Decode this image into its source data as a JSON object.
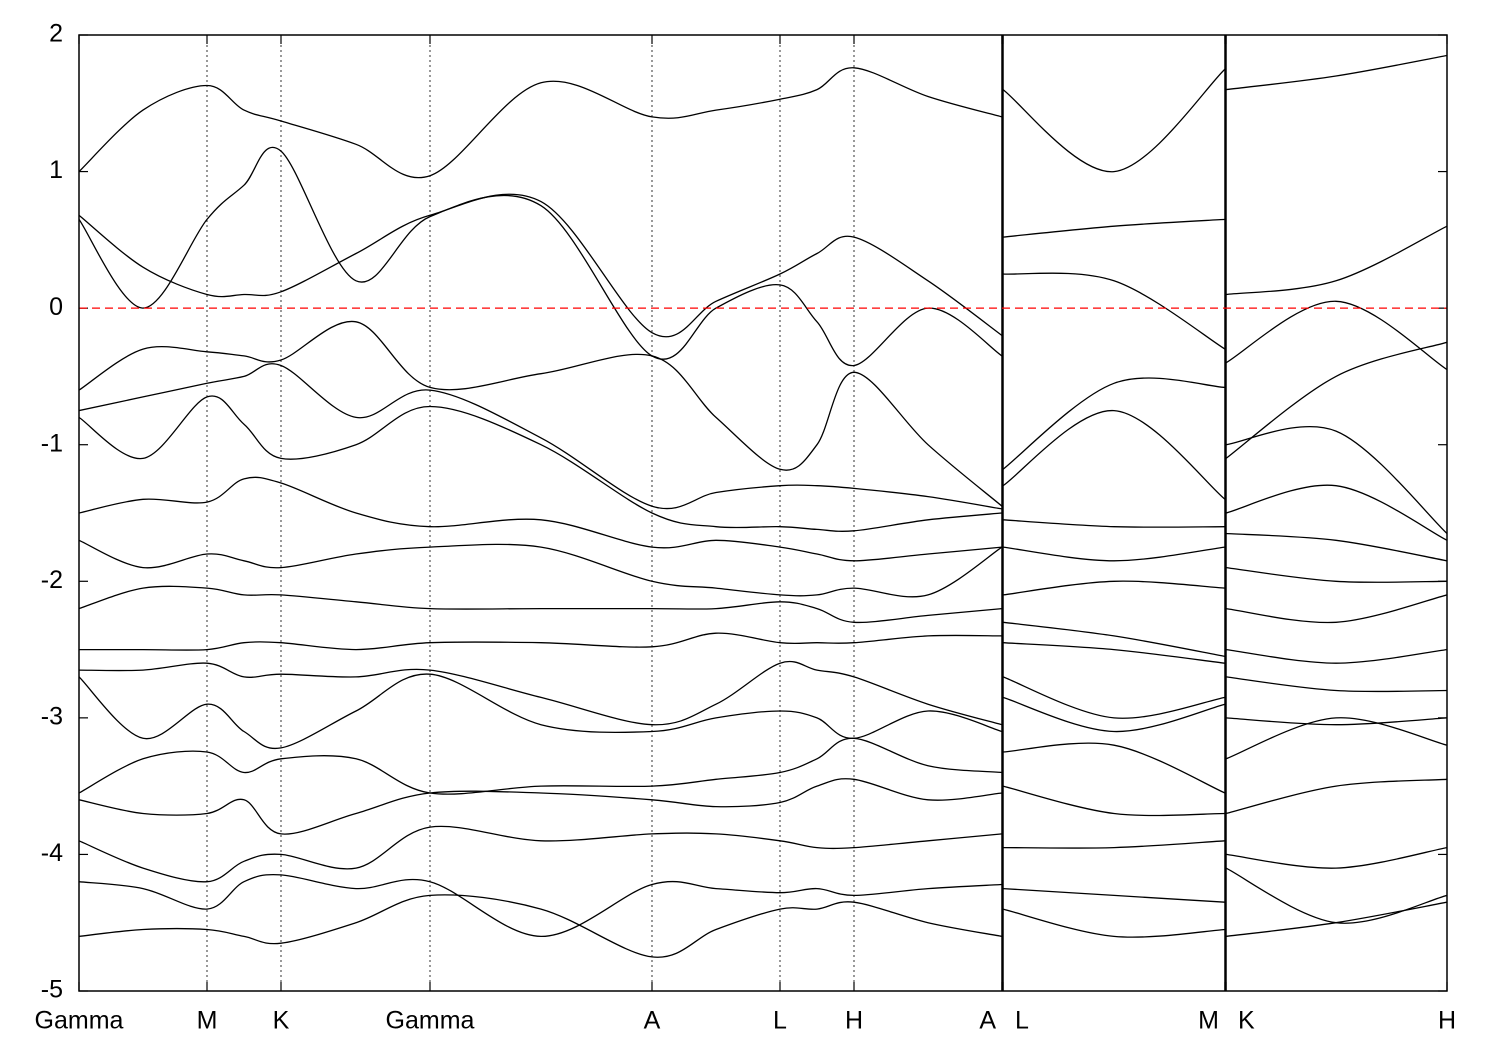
{
  "chart_data": {
    "type": "line",
    "x": [
      0,
      0.64,
      1.28,
      1.65,
      2.02,
      2.77,
      3.51,
      4.62,
      5.73,
      6.37,
      7.01,
      7.38,
      7.75,
      8.49,
      9.23,
      9.235,
      9.24,
      10.35,
      11.46,
      11.465,
      11.47,
      12.57,
      13.68
    ],
    "xlim": [
      0,
      13.68
    ],
    "xticks": [
      {
        "value": 0,
        "label": "Gamma"
      },
      {
        "value": 1.28,
        "label": "M"
      },
      {
        "value": 2.02,
        "label": "K"
      },
      {
        "value": 3.51,
        "label": "Gamma"
      },
      {
        "value": 5.73,
        "label": "A"
      },
      {
        "value": 7.01,
        "label": "L"
      },
      {
        "value": 7.75,
        "label": "H"
      },
      {
        "value": 9.23,
        "label": "A"
      },
      {
        "value": 9.24,
        "label": "L"
      },
      {
        "value": 11.46,
        "label": "M"
      },
      {
        "value": 11.47,
        "label": "K"
      },
      {
        "value": 13.68,
        "label": "H"
      }
    ],
    "ylim": [
      -5,
      2
    ],
    "yticks": [
      -5,
      -4,
      -3,
      -2,
      -1,
      0,
      1,
      2
    ],
    "fermi_level": 0,
    "fermi_color": "#ff0000",
    "series": [
      {
        "color": "#000000",
        "values": [
          1.0,
          1.45,
          1.63,
          1.45,
          1.37,
          1.2,
          0.97,
          1.65,
          1.4,
          1.45,
          1.53,
          1.6,
          1.76,
          1.55,
          1.4,
          null,
          1.6,
          1.0,
          1.75,
          null,
          1.6,
          1.7,
          1.85
        ]
      },
      {
        "color": "#000000",
        "values": [
          0.68,
          0.3,
          0.1,
          0.1,
          0.12,
          0.4,
          0.68,
          0.78,
          -0.18,
          0.05,
          0.25,
          0.4,
          0.52,
          0.2,
          -0.2,
          null,
          0.52,
          0.6,
          0.65,
          null,
          0.1,
          0.2,
          0.6
        ]
      },
      {
        "color": "#000000",
        "values": [
          0.65,
          0.0,
          0.65,
          0.9,
          1.15,
          0.2,
          0.67,
          0.75,
          -0.35,
          0.0,
          0.17,
          -0.1,
          -0.42,
          0.0,
          -0.35,
          null,
          0.25,
          0.2,
          -0.3,
          null,
          -0.4,
          0.05,
          -0.45
        ]
      },
      {
        "color": "#000000",
        "values": [
          -0.6,
          -0.3,
          -0.32,
          -0.35,
          -0.38,
          -0.1,
          -0.58,
          -0.48,
          -0.35,
          -0.8,
          -1.18,
          -1.0,
          -0.47,
          -1.0,
          -1.45,
          null,
          -1.18,
          -0.55,
          -0.58,
          null,
          -1.1,
          -0.5,
          -0.25
        ]
      },
      {
        "color": "#000000",
        "values": [
          -0.75,
          -0.65,
          -0.55,
          -0.5,
          -0.42,
          -0.8,
          -0.6,
          -0.95,
          -1.45,
          -1.35,
          -1.3,
          -1.3,
          -1.32,
          -1.38,
          -1.47,
          null,
          -1.3,
          -0.75,
          -1.4,
          null,
          -1.0,
          -0.9,
          -1.65
        ]
      },
      {
        "color": "#000000",
        "values": [
          -0.8,
          -1.1,
          -0.65,
          -0.85,
          -1.1,
          -1.0,
          -0.72,
          -1.0,
          -1.5,
          -1.6,
          -1.6,
          -1.62,
          -1.63,
          -1.55,
          -1.5,
          null,
          -1.55,
          -1.6,
          -1.6,
          null,
          -1.5,
          -1.3,
          -1.7
        ]
      },
      {
        "color": "#000000",
        "values": [
          -1.5,
          -1.4,
          -1.42,
          -1.25,
          -1.28,
          -1.5,
          -1.6,
          -1.55,
          -1.75,
          -1.7,
          -1.75,
          -1.8,
          -1.85,
          -1.8,
          -1.75,
          null,
          -1.75,
          -1.85,
          -1.75,
          null,
          -1.65,
          -1.7,
          -1.85
        ]
      },
      {
        "color": "#000000",
        "values": [
          -1.7,
          -1.9,
          -1.8,
          -1.85,
          -1.9,
          -1.8,
          -1.75,
          -1.75,
          -2.0,
          -2.05,
          -2.1,
          -2.1,
          -2.05,
          -2.1,
          -1.75,
          null,
          -2.1,
          -2.0,
          -2.05,
          null,
          -1.9,
          -2.0,
          -2.0
        ]
      },
      {
        "color": "#000000",
        "values": [
          -2.2,
          -2.05,
          -2.05,
          -2.1,
          -2.1,
          -2.15,
          -2.2,
          -2.2,
          -2.2,
          -2.2,
          -2.15,
          -2.2,
          -2.3,
          -2.25,
          -2.2,
          null,
          -2.3,
          -2.4,
          -2.55,
          null,
          -2.2,
          -2.3,
          -2.1
        ]
      },
      {
        "color": "#000000",
        "values": [
          -2.5,
          -2.5,
          -2.5,
          -2.45,
          -2.45,
          -2.5,
          -2.45,
          -2.45,
          -2.48,
          -2.38,
          -2.45,
          -2.45,
          -2.45,
          -2.4,
          -2.4,
          null,
          -2.45,
          -2.5,
          -2.6,
          null,
          -2.5,
          -2.6,
          -2.5
        ]
      },
      {
        "color": "#000000",
        "values": [
          -2.65,
          -2.65,
          -2.6,
          -2.7,
          -2.68,
          -2.7,
          -2.65,
          -2.85,
          -3.05,
          -2.9,
          -2.6,
          -2.65,
          -2.7,
          -2.9,
          -3.05,
          null,
          -2.7,
          -3.0,
          -2.85,
          null,
          -2.7,
          -2.8,
          -2.8
        ]
      },
      {
        "color": "#000000",
        "values": [
          -2.7,
          -3.15,
          -2.9,
          -3.1,
          -3.22,
          -2.95,
          -2.68,
          -3.05,
          -3.1,
          -3.0,
          -2.95,
          -3.0,
          -3.15,
          -2.95,
          -3.1,
          null,
          -2.85,
          -3.1,
          -2.9,
          null,
          -3.0,
          -3.05,
          -3.0
        ]
      },
      {
        "color": "#000000",
        "values": [
          -3.55,
          -3.3,
          -3.25,
          -3.4,
          -3.3,
          -3.3,
          -3.55,
          -3.5,
          -3.5,
          -3.45,
          -3.4,
          -3.3,
          -3.15,
          -3.35,
          -3.4,
          null,
          -3.25,
          -3.2,
          -3.55,
          null,
          -3.3,
          -3.0,
          -3.2
        ]
      },
      {
        "color": "#000000",
        "values": [
          -3.6,
          -3.7,
          -3.7,
          -3.6,
          -3.85,
          -3.7,
          -3.55,
          -3.55,
          -3.6,
          -3.65,
          -3.62,
          -3.5,
          -3.45,
          -3.6,
          -3.55,
          null,
          -3.5,
          -3.7,
          -3.7,
          null,
          -3.7,
          -3.5,
          -3.45
        ]
      },
      {
        "color": "#000000",
        "values": [
          -3.9,
          -4.1,
          -4.2,
          -4.05,
          -4.0,
          -4.1,
          -3.8,
          -3.9,
          -3.85,
          -3.85,
          -3.9,
          -3.95,
          -3.95,
          -3.9,
          -3.85,
          null,
          -3.95,
          -3.95,
          -3.9,
          null,
          -4.0,
          -4.1,
          -3.95
        ]
      },
      {
        "color": "#000000",
        "values": [
          -4.2,
          -4.25,
          -4.4,
          -4.2,
          -4.15,
          -4.25,
          -4.2,
          -4.6,
          -4.22,
          -4.25,
          -4.28,
          -4.25,
          -4.3,
          -4.25,
          -4.22,
          null,
          -4.25,
          -4.3,
          -4.35,
          null,
          -4.1,
          -4.5,
          -4.3
        ]
      },
      {
        "color": "#000000",
        "values": [
          -4.6,
          -4.55,
          -4.55,
          -4.6,
          -4.65,
          -4.5,
          -4.3,
          -4.4,
          -4.75,
          -4.55,
          -4.4,
          -4.4,
          -4.35,
          -4.5,
          -4.6,
          null,
          -4.4,
          -4.6,
          -4.55,
          null,
          -4.6,
          -4.5,
          -4.35
        ]
      }
    ]
  }
}
